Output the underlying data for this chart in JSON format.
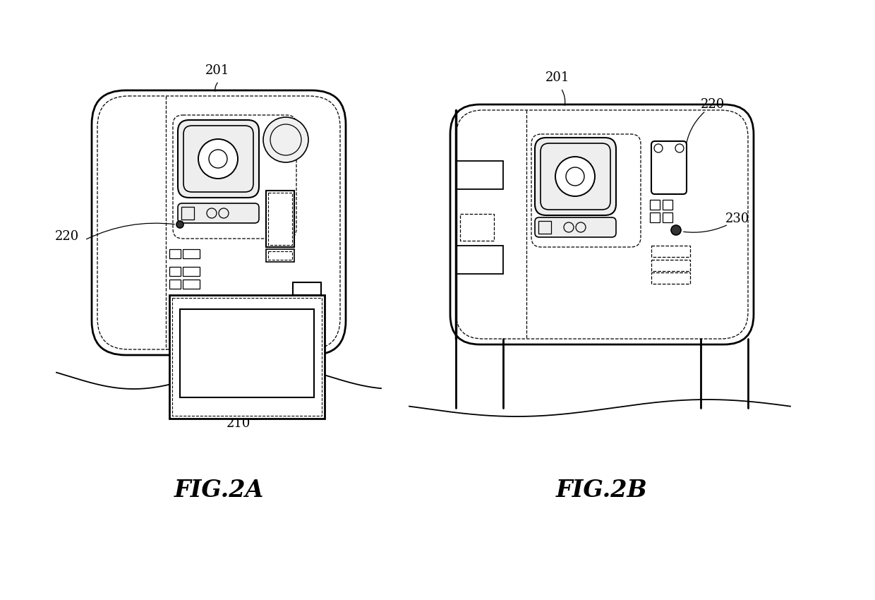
{
  "background_color": "#ffffff",
  "line_color": "#000000",
  "fig2a_label": "FIG.2A",
  "fig2b_label": "FIG.2B",
  "label_201a": "201",
  "label_220a": "220",
  "label_210": "210",
  "label_201b": "201",
  "label_220b": "220",
  "label_230": "230"
}
